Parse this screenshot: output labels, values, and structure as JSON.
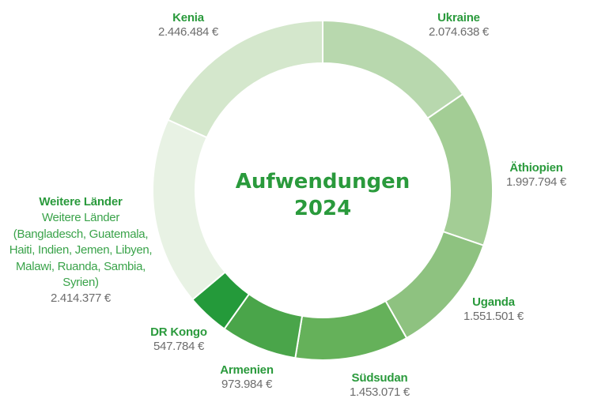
{
  "chart_data": {
    "type": "pie",
    "variant": "donut",
    "title": "Aufwendungen 2024",
    "currency": "€",
    "order": "clockwise from top",
    "categories": [
      "Ukraine",
      "Äthiopien",
      "Uganda",
      "Südsudan",
      "Armenien",
      "DR Kongo",
      "Weitere Länder",
      "Kenia"
    ],
    "values": [
      2074638,
      1997794,
      1551501,
      1453071,
      973984,
      547784,
      2414377,
      2446484
    ],
    "colors": [
      "#b8d8ae",
      "#a3cd95",
      "#8ec280",
      "#65b15a",
      "#4aa54a",
      "#249a3a",
      "#e8f2e4",
      "#d4e7cc"
    ],
    "total": 13459633
  },
  "center": {
    "line1": "Aufwendungen",
    "line2": "2024"
  },
  "labels": {
    "kenia": {
      "name": "Kenia",
      "value": "2.446.484 €"
    },
    "ukraine": {
      "name": "Ukraine",
      "value": "2.074.638 €"
    },
    "aethiopien": {
      "name": "Äthiopien",
      "value": "1.997.794 €"
    },
    "uganda": {
      "name": "Uganda",
      "value": "1.551.501 €"
    },
    "suedsudan": {
      "name": "Südsudan",
      "value": "1.453.071 €"
    },
    "armenien": {
      "name": "Armenien",
      "value": "973.984 €"
    },
    "drkongo": {
      "name": "DR Kongo",
      "value": "547.784 €"
    },
    "weitere": {
      "name": "Weitere Länder",
      "desc_lines": [
        "Weitere Länder",
        "(Bangladesch, Guatemala,",
        "Haiti, Indien, Jemen, Libyen,",
        "Malawi, Ruanda, Sambia,",
        "Syrien)"
      ],
      "value": "2.414.377 €"
    }
  }
}
